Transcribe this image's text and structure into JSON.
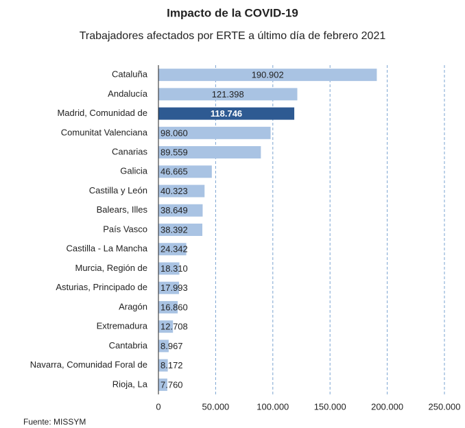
{
  "chart_data": {
    "type": "barh",
    "title": "Impacto de la COVID-19",
    "subtitle": "Trabajadores afectados por ERTE a último día de febrero 2021",
    "source": "Fuente: MISSYM",
    "categories": [
      "Cataluña",
      "Andalucía",
      "Madrid, Comunidad de",
      "Comunitat Valenciana",
      "Canarias",
      "Galicia",
      "Castilla y León",
      "Balears, Illes",
      "País Vasco",
      "Castilla - La Mancha",
      "Murcia, Región de",
      "Asturias, Principado de",
      "Aragón",
      "Extremadura",
      "Cantabria",
      "Navarra, Comunidad Foral de",
      "Rioja, La"
    ],
    "values": [
      190902,
      121398,
      118746,
      98060,
      89559,
      46665,
      40323,
      38649,
      38392,
      24342,
      18310,
      17993,
      16860,
      12708,
      8967,
      8172,
      7760
    ],
    "value_labels": [
      "190.902",
      "121.398",
      "118.746",
      "98.060",
      "89.559",
      "46.665",
      "40.323",
      "38.649",
      "38.392",
      "24.342",
      "18.310",
      "17.993",
      "16.860",
      "12.708",
      "8.967",
      "8.172",
      "7.760"
    ],
    "colors": [
      "#a9c3e3",
      "#a9c3e3",
      "#2e5a92",
      "#a9c3e3",
      "#a9c3e3",
      "#a9c3e3",
      "#a9c3e3",
      "#a9c3e3",
      "#a9c3e3",
      "#a9c3e3",
      "#a9c3e3",
      "#a9c3e3",
      "#a9c3e3",
      "#a9c3e3",
      "#a9c3e3",
      "#a9c3e3",
      "#a9c3e3"
    ],
    "xlim": [
      0,
      250000
    ],
    "xticks": [
      0,
      {
        "value": 50000,
        "label": "50.000"
      },
      {
        "value": 100000,
        "label": "100.000"
      },
      {
        "value": 150000,
        "label": "150.000"
      },
      {
        "value": 200000,
        "label": "200.000"
      },
      {
        "value": 250000,
        "label": "250.000"
      }
    ],
    "grid": true
  }
}
